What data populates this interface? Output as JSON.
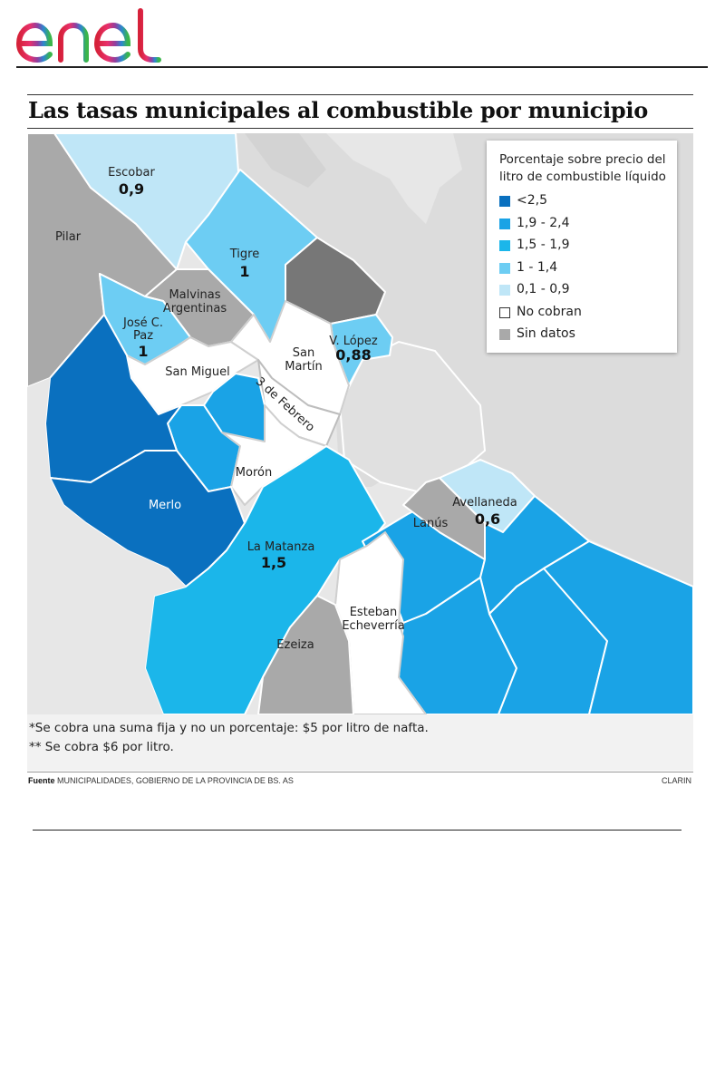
{
  "brand": {
    "logo_text": "enel"
  },
  "title": "Las tasas municipales al combustible por municipio",
  "legend": {
    "title": "Porcentaje sobre precio del litro de combustible líquido",
    "items": [
      {
        "label": "<2,5",
        "color": "#0a70bf"
      },
      {
        "label": "1,9 - 2,4",
        "color": "#1aa3e6"
      },
      {
        "label": "1,5 - 1,9",
        "color": "#1bb6ea"
      },
      {
        "label": "1 - 1,4",
        "color": "#6dcdf3"
      },
      {
        "label": "0,1 - 0,9",
        "color": "#bfe6f7"
      },
      {
        "label": "No cobran",
        "color": "#ffffff"
      },
      {
        "label": "Sin datos",
        "color": "#a9a9a9"
      }
    ]
  },
  "map": {
    "colors": {
      "water": "#dcdcdc",
      "outside": "#e7e7e7",
      "stroke": "#ffffff"
    },
    "municipalities": {
      "escobar": {
        "name": "Escobar",
        "value": "0,9"
      },
      "pilar": {
        "name": "Pilar",
        "value": ""
      },
      "tigre": {
        "name": "Tigre",
        "value": "1"
      },
      "malvinas": {
        "name_line1": "Malvinas",
        "name_line2": "Argentinas",
        "value": ""
      },
      "jose_c_paz": {
        "name_line1": "José C.",
        "name_line2": "Paz",
        "value": "1"
      },
      "san_miguel": {
        "name": "San Miguel",
        "value": ""
      },
      "san_martin": {
        "name_line1": "San",
        "name_line2": "Martín",
        "value": ""
      },
      "v_lopez": {
        "name": "V. López",
        "value": "0,88"
      },
      "tres_de_febrero": {
        "name": "3 de Febrero",
        "value": ""
      },
      "moron": {
        "name": "Morón",
        "value": ""
      },
      "merlo": {
        "name": "Merlo",
        "value": ""
      },
      "la_matanza": {
        "name": "La Matanza",
        "value": "1,5"
      },
      "lanus": {
        "name": "Lanús",
        "value": ""
      },
      "avellaneda": {
        "name": "Avellaneda",
        "value": "0,6"
      },
      "esteban_echeverria": {
        "name_line1": "Esteban",
        "name_line2": "Echeverría",
        "value": ""
      },
      "ezeiza": {
        "name": "Ezeiza",
        "value": ""
      }
    }
  },
  "footnotes": [
    "*Se cobra una suma fija y no un porcentaje: $5 por litro de nafta.",
    "** Se cobra $6 por litro."
  ],
  "source": {
    "label": "Fuente",
    "text": "MUNICIPALIDADES, GOBIERNO DE LA PROVINCIA DE BS. AS"
  },
  "credit": "CLARIN"
}
